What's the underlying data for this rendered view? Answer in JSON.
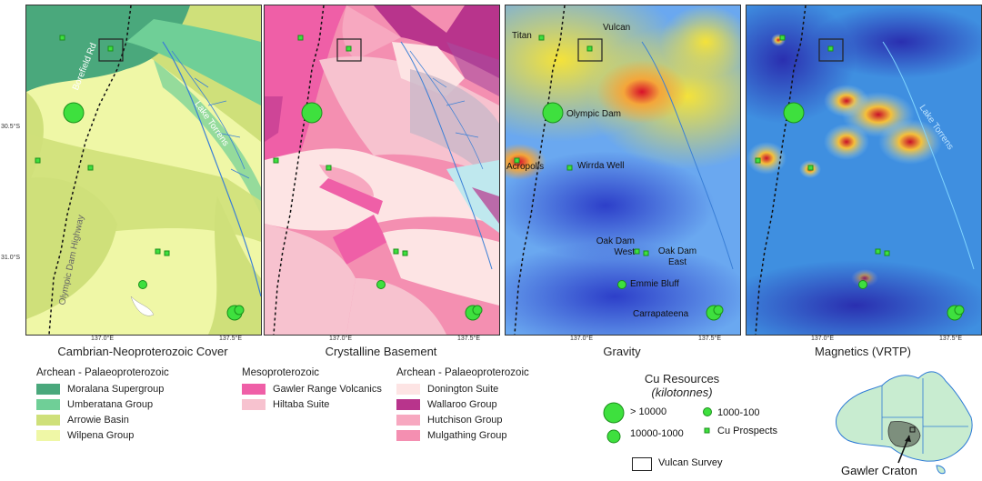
{
  "panels": [
    {
      "title": "Cambrian-Neoproterozoic Cover"
    },
    {
      "title": "Crystalline Basement"
    },
    {
      "title": "Gravity"
    },
    {
      "title": "Magnetics (VRTP)"
    }
  ],
  "ticks": {
    "lon_137": "137.0°E",
    "lon_1375": "137.5°E",
    "lat_305": "30.5°S",
    "lat_31": "31.0°S"
  },
  "map_labels": {
    "road_1": "Borefield Rd",
    "road_2": "Olympic Dam Highway",
    "lake": "Lake Torrens",
    "lake_magnetics": "Lake Torrens"
  },
  "deposits": {
    "titan": "Titan",
    "vulcan": "Vulcan",
    "olympic_dam": "Olympic Dam",
    "acropolis": "Acropolis",
    "wirrda_well": "Wirrda Well",
    "oak_dam_west": "Oak Dam West",
    "oak_dam_east": "Oak Dam East",
    "emmie_bluff": "Emmie Bluff",
    "carrapateena": "Carrapateena"
  },
  "legend_cover": {
    "heading": "Archean - Palaeoproterozoic",
    "items": [
      {
        "label": "Moralana Supergroup",
        "color": "#4aa87c"
      },
      {
        "label": "Umberatana Group",
        "color": "#6fcf97"
      },
      {
        "label": "Arrowie Basin",
        "color": "#cfe07a"
      },
      {
        "label": "Wilpena Group",
        "color": "#eff7a6"
      }
    ]
  },
  "legend_meso": {
    "heading": "Mesoproterozoic",
    "items": [
      {
        "label": "Gawler Range Volcanics",
        "color": "#ef5fa7"
      },
      {
        "label": "Hiltaba Suite",
        "color": "#f7c2cf"
      }
    ]
  },
  "legend_archean": {
    "heading": "Archean - Palaeoproterozoic",
    "items": [
      {
        "label": "Donington Suite",
        "color": "#fde4e4"
      },
      {
        "label": "Wallaroo Group",
        "color": "#b8348c"
      },
      {
        "label": "Hutchison Group",
        "color": "#f7a8c0"
      },
      {
        "label": "Mulgathing Group",
        "color": "#f48fb1"
      }
    ]
  },
  "legend_cu": {
    "title": "Cu Resources",
    "subtitle": "(kilotonnes)",
    "items": [
      {
        "label": "> 10000"
      },
      {
        "label": "10000-1000"
      },
      {
        "label": "1000-100"
      },
      {
        "label": "Cu Prospects"
      }
    ]
  },
  "survey_label": "Vulcan Survey",
  "inset_label": "Gawler Craton",
  "colors": {
    "cu_fill": "#3ee03e",
    "cu_stroke": "#1a8f1a",
    "water": "#3a7fd6"
  }
}
